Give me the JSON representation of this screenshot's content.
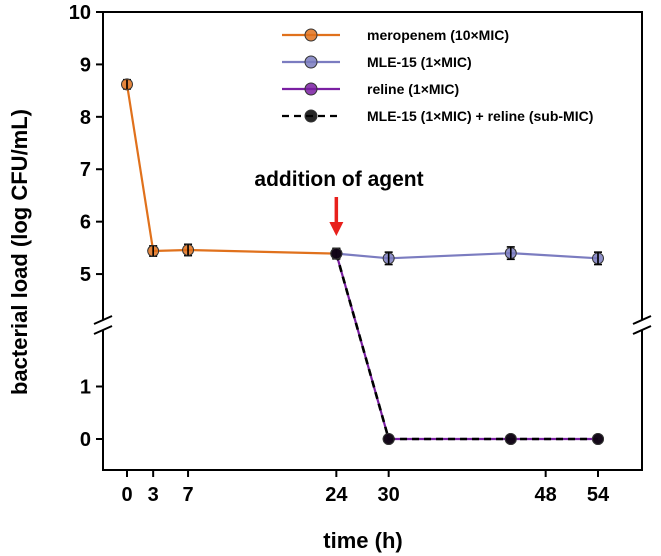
{
  "chart_data": {
    "type": "line",
    "title": "",
    "xlabel": "time (h)",
    "ylabel": "bacterial load (log CFU/mL)",
    "xlim": [
      -5,
      63
    ],
    "ylim_upper": [
      4.2,
      10
    ],
    "ylim_lower": [
      -0.4,
      2
    ],
    "axis_break": "between 2 and 4.2",
    "x_ticks": [
      0,
      3,
      7,
      24,
      30,
      48,
      54
    ],
    "y_ticks": [
      0,
      1,
      5,
      6,
      7,
      8,
      9,
      10
    ],
    "series": [
      {
        "name": "meropenem (10×MIC)",
        "color": "#e0711c",
        "line_style": "solid",
        "points": [
          {
            "x": 0,
            "y": 8.62,
            "err": 0.05
          },
          {
            "x": 3,
            "y": 5.44,
            "err": 0.06
          },
          {
            "x": 7,
            "y": 5.46,
            "err": 0.07
          },
          {
            "x": 24,
            "y": 5.39,
            "err": 0.06
          }
        ]
      },
      {
        "name": "MLE-15 (1×MIC)",
        "color": "#7b7cc0",
        "line_style": "solid",
        "points": [
          {
            "x": 24,
            "y": 5.39,
            "err": 0.06
          },
          {
            "x": 30,
            "y": 5.3,
            "err": 0.08
          },
          {
            "x": 44,
            "y": 5.4,
            "err": 0.08
          },
          {
            "x": 54,
            "y": 5.3,
            "err": 0.08
          }
        ]
      },
      {
        "name": "reline (1×MIC)",
        "color": "#7a1fa2",
        "line_style": "solid",
        "points": [
          {
            "x": 24,
            "y": 5.39,
            "err": 0
          },
          {
            "x": 30,
            "y": 0,
            "err": 0
          },
          {
            "x": 44,
            "y": 0,
            "err": 0
          },
          {
            "x": 54,
            "y": 0,
            "err": 0
          }
        ]
      },
      {
        "name": "MLE-15 (1×MIC) + reline (sub-MIC)",
        "color": "#000000",
        "line_style": "dashed",
        "points": [
          {
            "x": 24,
            "y": 5.39,
            "err": 0
          },
          {
            "x": 30,
            "y": 0,
            "err": 0
          },
          {
            "x": 44,
            "y": 0,
            "err": 0
          },
          {
            "x": 54,
            "y": 0,
            "err": 0
          }
        ]
      }
    ],
    "annotations": [
      {
        "text": "addition of agent",
        "arrow_color": "#e8201c",
        "at_x": 24
      }
    ],
    "legend_position": "top-right"
  }
}
